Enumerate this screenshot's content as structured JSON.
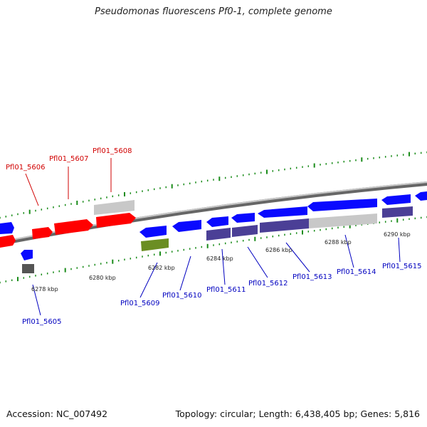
{
  "title": "Pseudomonas fluorescens Pf0-1, complete genome",
  "accession_text": "Accession: NC_007492",
  "summary_text": "Topology: circular; Length: 6,438,405 bp; Genes: 5,816",
  "colors": {
    "backbone": "#8a8a8a",
    "tick": "#1a8c1a",
    "red_gene": "#ff0000",
    "blue_gene": "#0a0aff",
    "purple_gene": "#4b3f96",
    "grey_gene": "#c8c8c8",
    "dark_grey_gene": "#555555",
    "olive_gene": "#6b8e23",
    "label_red": "#d10000",
    "label_blue": "#0000c0"
  },
  "scale_labels": [
    "6278 kbp",
    "6280 kbp",
    "6282 kbp",
    "6284 kbp",
    "6286 kbp",
    "6288 kbp",
    "6290 kbp"
  ],
  "gene_labels": {
    "red": [
      "Pfl01_5606",
      "Pfl01_5607",
      "Pfl01_5608"
    ],
    "blue": [
      "Pfl01_5605",
      "Pfl01_5609",
      "Pfl01_5610",
      "Pfl01_5611",
      "Pfl01_5612",
      "Pfl01_5613",
      "Pfl01_5614",
      "Pfl01_5615"
    ]
  }
}
